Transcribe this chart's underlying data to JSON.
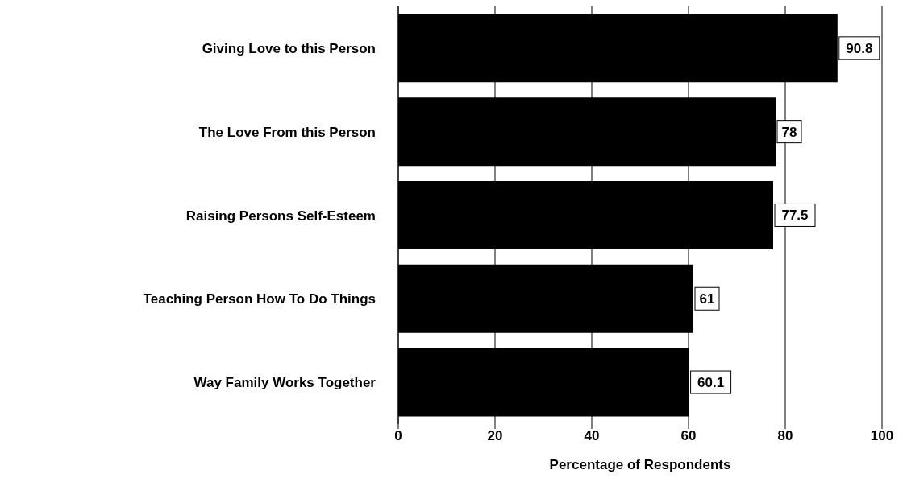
{
  "chart_data": {
    "type": "bar",
    "orientation": "horizontal",
    "xlabel": "Percentage of Respondents",
    "categories": [
      "Giving Love to this Person",
      "The Love From this Person",
      "Raising Persons Self-Esteem",
      "Teaching Person How To Do Things",
      "Way Family Works Together"
    ],
    "values": [
      90.8,
      78,
      77.5,
      61,
      60.1
    ],
    "color": "#000000",
    "xlim": [
      0,
      100
    ],
    "xticks": [
      0,
      20,
      40,
      60,
      80,
      100
    ],
    "grid": "x",
    "data_labels": true,
    "legend": false
  }
}
